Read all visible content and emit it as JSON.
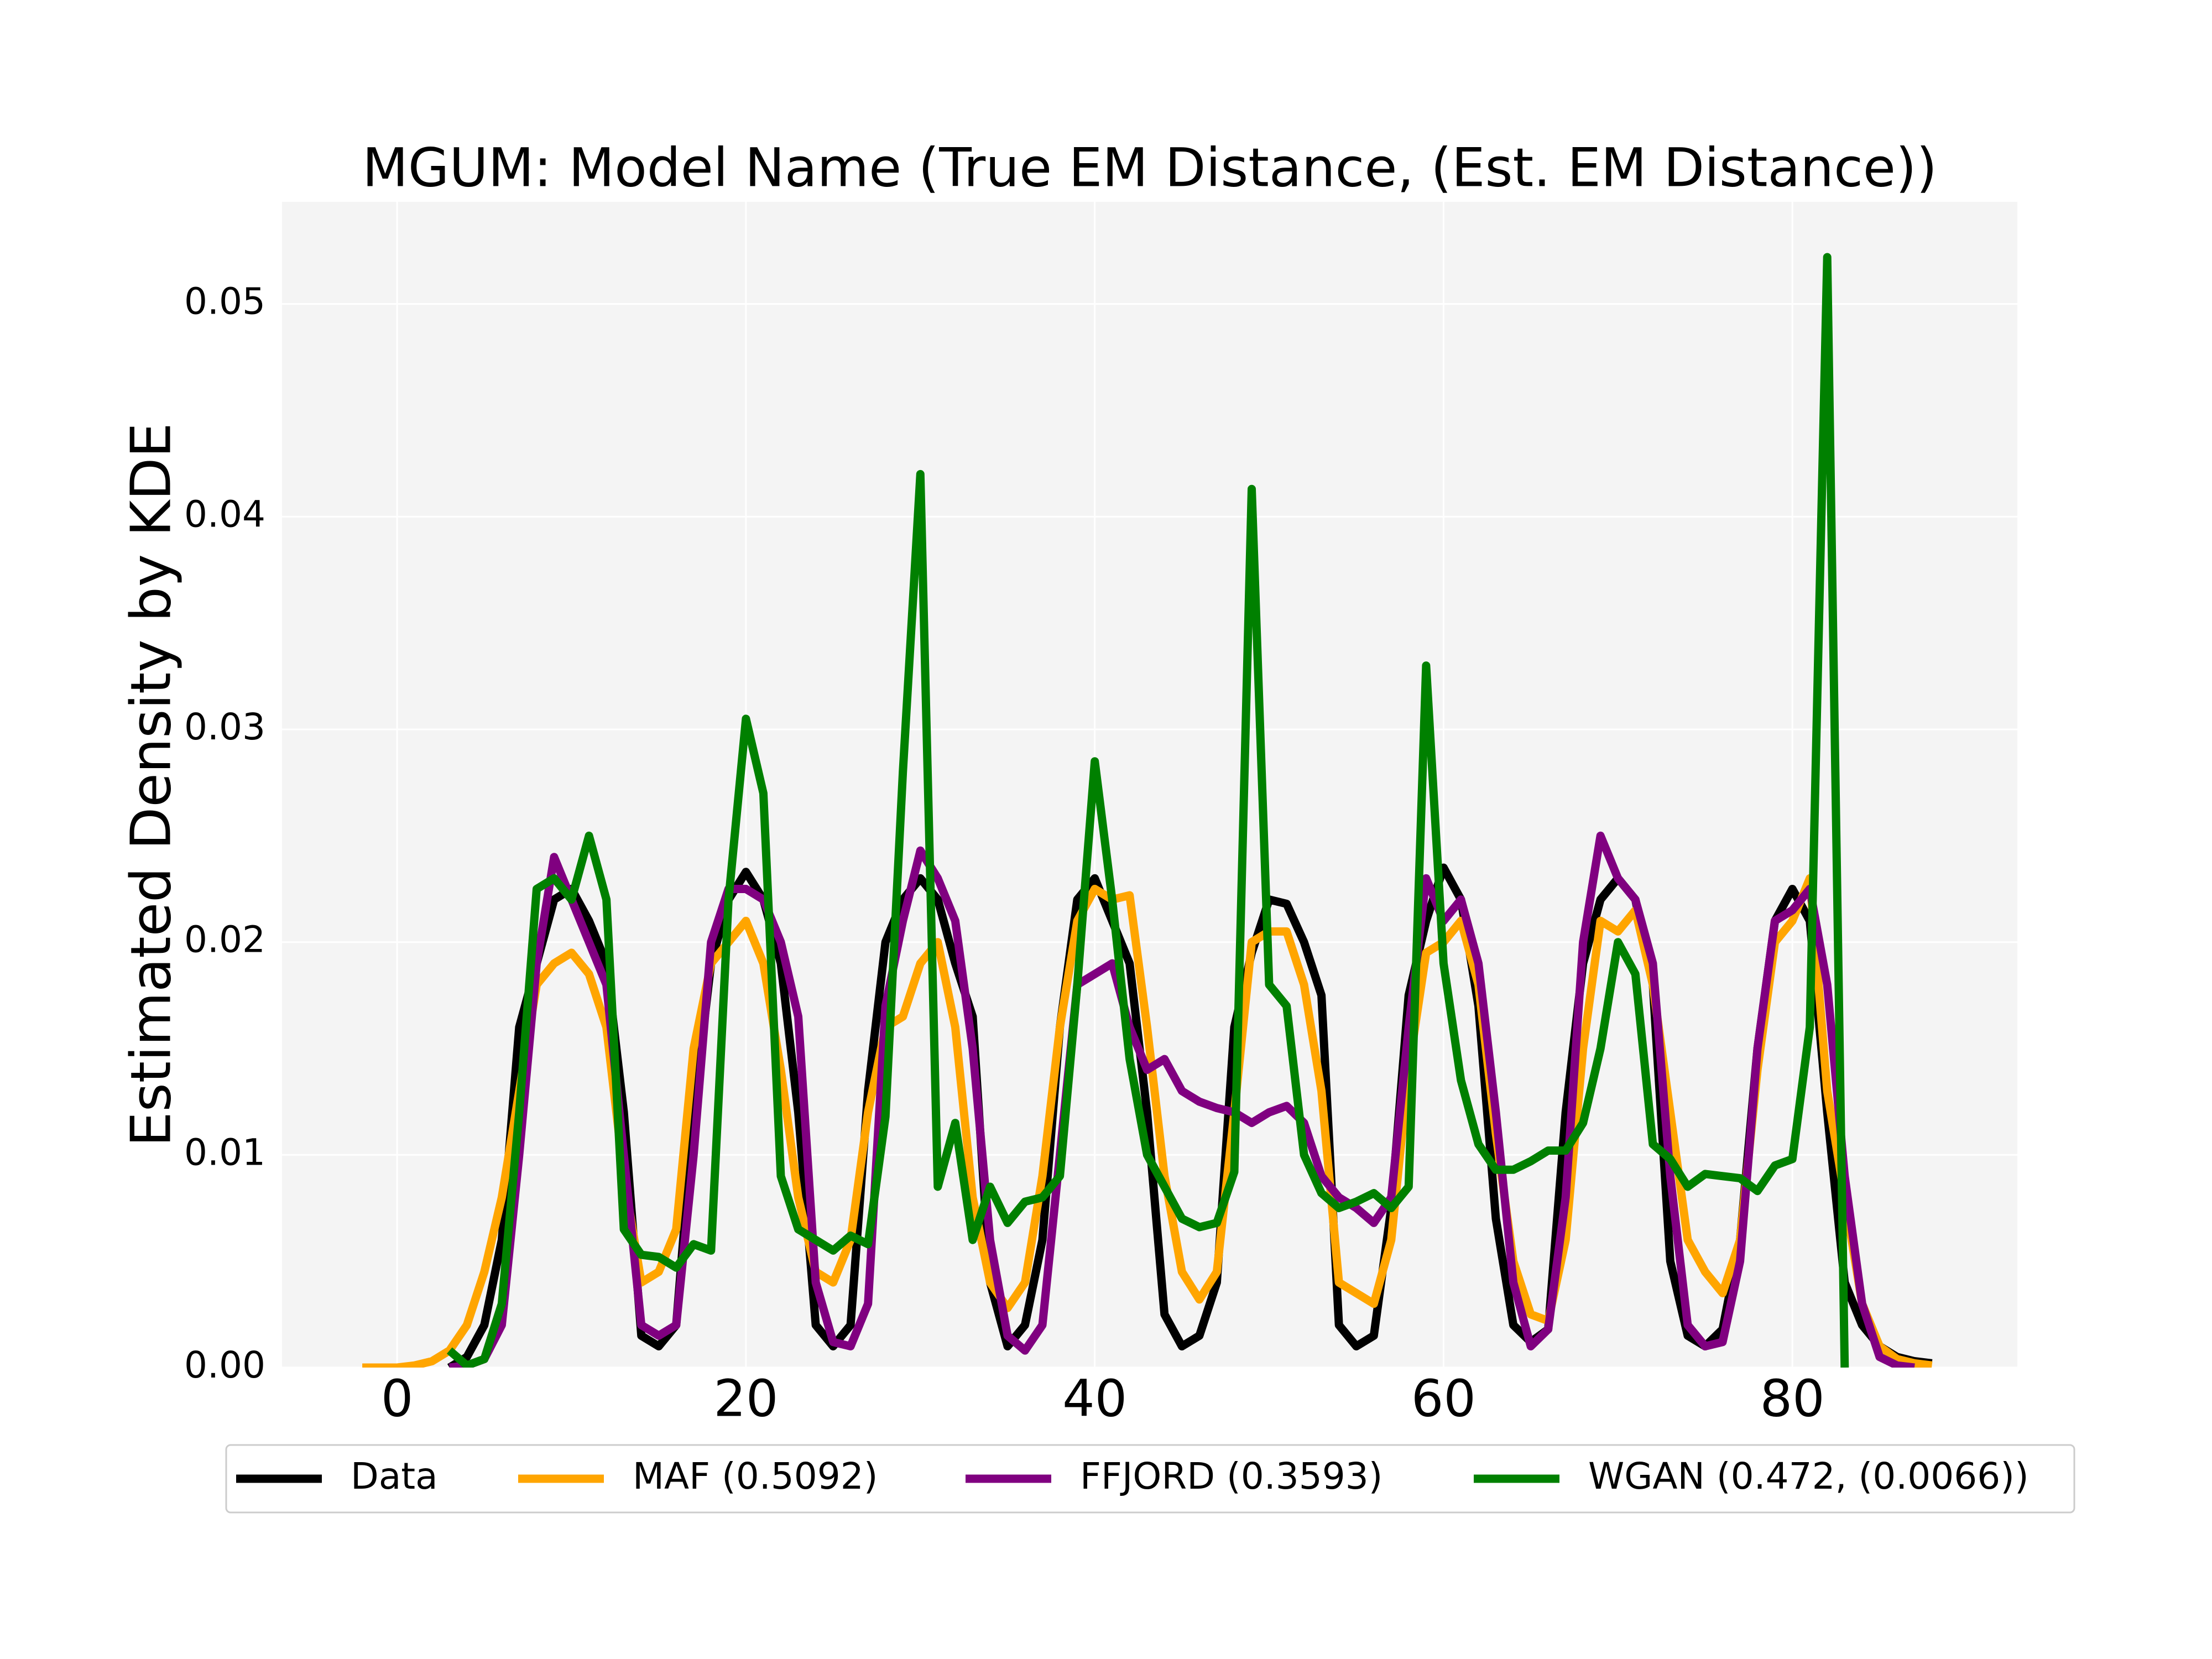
{
  "chart_data": {
    "type": "line",
    "title": "MGUM: Model Name (True EM Distance, (Est. EM Distance))",
    "y_label": "Estimated Density by KDE",
    "x": [
      -2,
      -1,
      0,
      1,
      2,
      3,
      4,
      5,
      6,
      7,
      8,
      9,
      10,
      11,
      12,
      13,
      14,
      15,
      16,
      17,
      18,
      19,
      20,
      21,
      22,
      23,
      24,
      25,
      26,
      27,
      28,
      29,
      30,
      31,
      32,
      33,
      34,
      35,
      36,
      37,
      38,
      39,
      40,
      41,
      42,
      43,
      44,
      45,
      46,
      47,
      48,
      49,
      50,
      51,
      52,
      53,
      54,
      55,
      56,
      57,
      58,
      59,
      60,
      61,
      62,
      63,
      64,
      65,
      66,
      67,
      68,
      69,
      70,
      71,
      72,
      73,
      74,
      75,
      76,
      77,
      78,
      79,
      80,
      81,
      82,
      83,
      84,
      85,
      86,
      87,
      88
    ],
    "series": [
      {
        "name": "Data",
        "color": "#000000",
        "values": [
          null,
          null,
          null,
          null,
          null,
          0,
          0.0005,
          0.002,
          0.006,
          0.016,
          0.019,
          0.022,
          0.0225,
          0.021,
          0.019,
          0.012,
          0.0015,
          0.001,
          0.002,
          0.012,
          0.019,
          0.022,
          0.0233,
          0.022,
          0.019,
          0.012,
          0.002,
          0.001,
          0.002,
          0.013,
          0.02,
          0.022,
          0.023,
          0.022,
          0.019,
          0.0165,
          0.004,
          0.001,
          0.002,
          0.006,
          0.016,
          0.022,
          0.023,
          0.021,
          0.019,
          0.012,
          0.0025,
          0.001,
          0.0015,
          0.004,
          0.016,
          0.0195,
          0.022,
          0.0218,
          0.02,
          0.0175,
          0.002,
          0.001,
          0.0015,
          0.0075,
          0.0175,
          0.021,
          0.0235,
          0.022,
          0.017,
          0.007,
          0.002,
          0.0012,
          0.0018,
          0.012,
          0.019,
          0.022,
          0.023,
          0.022,
          0.018,
          0.005,
          0.0015,
          0.001,
          0.0018,
          0.006,
          0.015,
          0.021,
          0.0225,
          0.021,
          0.012,
          0.004,
          0.002,
          0.001,
          0.0005,
          0.0003,
          0.0002
        ]
      },
      {
        "name": "MAF (0.5092)",
        "color": "#ffa500",
        "values": [
          0,
          0,
          0,
          0.0001,
          0.0003,
          0.0008,
          0.002,
          0.0045,
          0.008,
          0.013,
          0.018,
          0.019,
          0.0195,
          0.0185,
          0.016,
          0.009,
          0.004,
          0.0045,
          0.0065,
          0.015,
          0.019,
          0.02,
          0.021,
          0.019,
          0.014,
          0.008,
          0.0045,
          0.004,
          0.006,
          0.012,
          0.016,
          0.0165,
          0.019,
          0.02,
          0.016,
          0.008,
          0.004,
          0.0028,
          0.004,
          0.009,
          0.016,
          0.021,
          0.0225,
          0.022,
          0.0222,
          0.016,
          0.009,
          0.0045,
          0.0032,
          0.0045,
          0.012,
          0.02,
          0.0205,
          0.0205,
          0.018,
          0.013,
          0.004,
          0.0035,
          0.003,
          0.006,
          0.014,
          0.0195,
          0.02,
          0.021,
          0.018,
          0.011,
          0.005,
          0.0025,
          0.0022,
          0.006,
          0.015,
          0.021,
          0.0205,
          0.0215,
          0.018,
          0.012,
          0.006,
          0.0045,
          0.0035,
          0.006,
          0.014,
          0.02,
          0.021,
          0.023,
          0.013,
          0.008,
          0.003,
          0.001,
          0.0004,
          0.0002,
          0.0001
        ]
      },
      {
        "name": "FFJORD (0.3593)",
        "color": "#800080",
        "values": [
          null,
          null,
          null,
          null,
          null,
          0,
          0.0001,
          0.0004,
          0.002,
          0.01,
          0.019,
          0.024,
          0.022,
          0.02,
          0.018,
          0.01,
          0.002,
          0.0015,
          0.002,
          0.01,
          0.02,
          0.0225,
          0.0225,
          0.022,
          0.02,
          0.0165,
          0.004,
          0.0012,
          0.001,
          0.003,
          0.017,
          0.021,
          0.0243,
          0.023,
          0.021,
          0.015,
          0.006,
          0.0015,
          0.0008,
          0.002,
          0.01,
          0.018,
          0.0185,
          0.019,
          0.016,
          0.014,
          0.0145,
          0.013,
          0.0125,
          0.0122,
          0.012,
          0.0115,
          0.012,
          0.0123,
          0.0115,
          0.009,
          0.008,
          0.0075,
          0.0068,
          0.008,
          0.016,
          0.023,
          0.021,
          0.022,
          0.019,
          0.012,
          0.004,
          0.001,
          0.0018,
          0.008,
          0.02,
          0.025,
          0.023,
          0.022,
          0.019,
          0.009,
          0.002,
          0.001,
          0.0012,
          0.005,
          0.015,
          0.021,
          0.0215,
          0.0225,
          0.018,
          0.009,
          0.003,
          0.0005,
          0.0001,
          0,
          null
        ]
      },
      {
        "name": "WGAN (0.472, (0.0066))",
        "color": "#008000",
        "values": [
          null,
          null,
          null,
          null,
          null,
          0.0008,
          0.0001,
          0.0004,
          0.003,
          0.012,
          0.0225,
          0.023,
          0.022,
          0.025,
          0.022,
          0.0065,
          0.0053,
          0.0052,
          0.0047,
          0.0058,
          0.0055,
          0.022,
          0.0305,
          0.027,
          0.009,
          0.0065,
          0.006,
          0.0055,
          0.0062,
          0.0058,
          0.0118,
          0.028,
          0.042,
          0.0085,
          0.0115,
          0.006,
          0.0085,
          0.0068,
          0.0078,
          0.008,
          0.009,
          0.018,
          0.0285,
          0.022,
          0.0145,
          0.01,
          0.0085,
          0.007,
          0.0066,
          0.0068,
          0.0092,
          0.0413,
          0.018,
          0.017,
          0.01,
          0.0082,
          0.0075,
          0.0078,
          0.0082,
          0.0075,
          0.0085,
          0.033,
          0.019,
          0.0135,
          0.0105,
          0.0093,
          0.0093,
          0.0097,
          0.0102,
          0.0102,
          0.0115,
          0.015,
          0.02,
          0.0185,
          0.0105,
          0.0098,
          0.0085,
          0.0091,
          0.009,
          0.0089,
          0.0083,
          0.0095,
          0.0098,
          0.016,
          0.0522,
          0,
          null,
          null,
          null,
          null,
          null
        ]
      }
    ],
    "xlim": [
      -6.6,
      92.9
    ],
    "xticks": [
      0,
      20,
      40,
      60,
      80
    ],
    "ylim": [
      0,
      0.0548
    ],
    "yticks": [
      {
        "value": 0,
        "label": "0.00"
      },
      0.01,
      0.02,
      0.03,
      0.04,
      0.05
    ],
    "grid": true,
    "legend": "below"
  }
}
